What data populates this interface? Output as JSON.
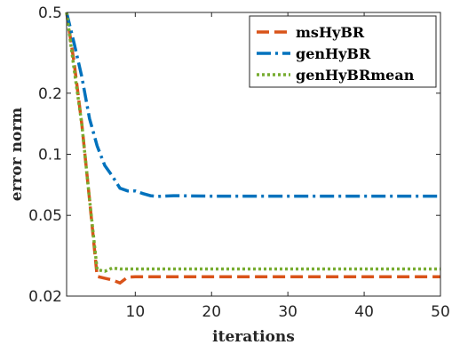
{
  "chart_data": {
    "type": "line",
    "xlabel": "iterations",
    "ylabel": "error norm",
    "xlim": [
      1,
      50
    ],
    "ylim": [
      0.02,
      0.5
    ],
    "yscale": "log",
    "grid": false,
    "legend_position": "top-right",
    "x_ticks": [
      10,
      20,
      30,
      40,
      50
    ],
    "x_tick_labels": [
      "10",
      "20",
      "30",
      "40",
      "50"
    ],
    "y_ticks": [
      0.02,
      0.05,
      0.1,
      0.2,
      0.5
    ],
    "y_tick_labels": [
      "0.02",
      "0.05",
      "0.1",
      "0.2",
      "0.5"
    ],
    "series": [
      {
        "name": "msHyBR",
        "color": "#D95319",
        "style": "dashed",
        "x": [
          1,
          2,
          3,
          4,
          5,
          6,
          7,
          8,
          9,
          10,
          15,
          20,
          30,
          40,
          50
        ],
        "y": [
          0.5,
          0.28,
          0.14,
          0.06,
          0.025,
          0.0245,
          0.024,
          0.0232,
          0.0248,
          0.0249,
          0.0249,
          0.0249,
          0.0249,
          0.0249,
          0.0249
        ]
      },
      {
        "name": "genHyBR",
        "color": "#0072BD",
        "style": "dashdot",
        "x": [
          1,
          2,
          3,
          4,
          5,
          6,
          7,
          8,
          9,
          10,
          11,
          12,
          13,
          15,
          20,
          30,
          40,
          50
        ],
        "y": [
          0.5,
          0.35,
          0.24,
          0.15,
          0.11,
          0.088,
          0.078,
          0.068,
          0.066,
          0.066,
          0.064,
          0.0625,
          0.062,
          0.0625,
          0.0622,
          0.0622,
          0.0622,
          0.0622
        ]
      },
      {
        "name": "genHyBRmean",
        "color": "#77AC30",
        "style": "dotted",
        "x": [
          1,
          2,
          3,
          4,
          5,
          6,
          7,
          8,
          10,
          20,
          30,
          40,
          50
        ],
        "y": [
          0.5,
          0.26,
          0.14,
          0.06,
          0.027,
          0.0265,
          0.0275,
          0.0272,
          0.0272,
          0.0272,
          0.0272,
          0.0272,
          0.0272
        ]
      }
    ]
  }
}
